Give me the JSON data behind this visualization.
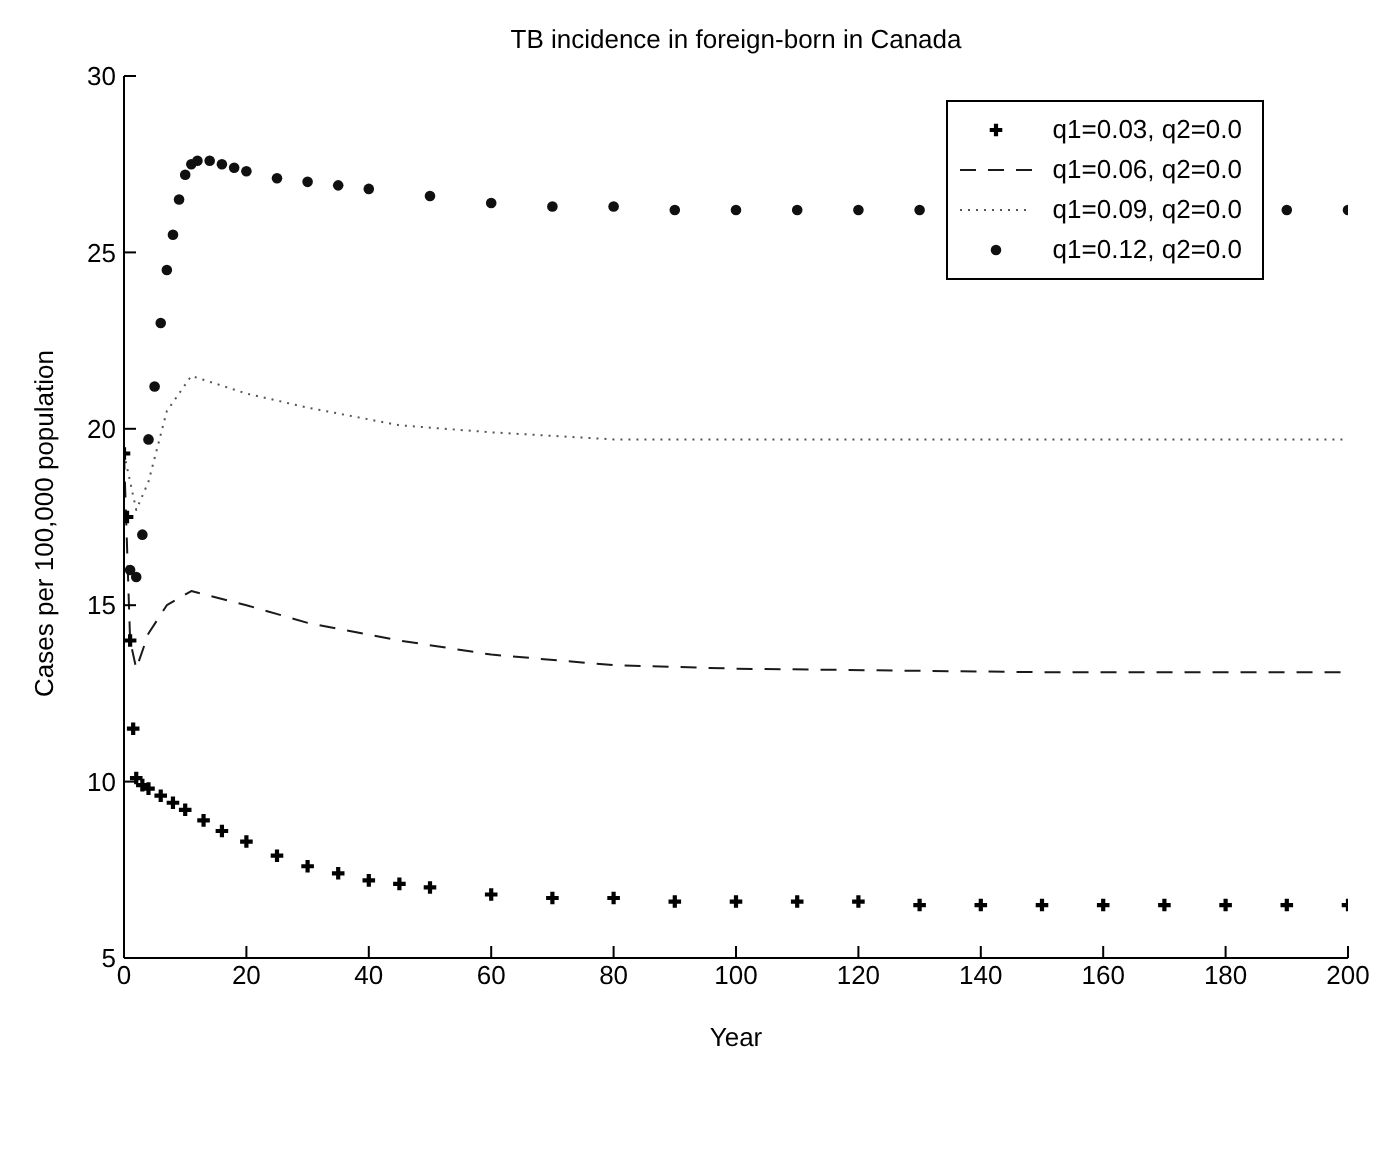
{
  "chart_data": {
    "type": "line",
    "title": "TB incidence in foreign-born in Canada",
    "xlabel": "Year",
    "ylabel": "Cases per 100,000 population",
    "xlim": [
      0,
      200
    ],
    "xticks": [
      0,
      20,
      40,
      60,
      80,
      100,
      120,
      140,
      160,
      180,
      200
    ],
    "ylim": [
      5,
      30
    ],
    "yticks": [
      5,
      10,
      15,
      20,
      25,
      30
    ],
    "grid": false,
    "legend": "top right",
    "series": [
      {
        "name": "q1=0.03, q2=0.0",
        "type": "scatter",
        "marker": "cross",
        "color": "#000000",
        "x": [
          0,
          0.5,
          1,
          1.5,
          2,
          3,
          4,
          6,
          8,
          10,
          13,
          16,
          20,
          25,
          30,
          35,
          40,
          45,
          50,
          60,
          70,
          80,
          90,
          100,
          110,
          120,
          130,
          140,
          150,
          160,
          170,
          180,
          190,
          200
        ],
        "values": [
          19.3,
          17.5,
          14.0,
          11.5,
          10.1,
          9.9,
          9.8,
          9.6,
          9.4,
          9.2,
          8.9,
          8.6,
          8.3,
          7.9,
          7.6,
          7.4,
          7.2,
          7.1,
          7.0,
          6.8,
          6.7,
          6.7,
          6.6,
          6.6,
          6.6,
          6.6,
          6.5,
          6.5,
          6.5,
          6.5,
          6.5,
          6.5,
          6.5,
          6.5
        ]
      },
      {
        "name": "q1=0.06, q2=0.0",
        "line_style": "dashed",
        "color": "#1a1a1a",
        "x": [
          0,
          1,
          2,
          4,
          7,
          11,
          20,
          30,
          45,
          60,
          80,
          100,
          150,
          200
        ],
        "values": [
          19.3,
          14.0,
          13.2,
          14.2,
          15.0,
          15.4,
          15.0,
          14.5,
          14.0,
          13.6,
          13.3,
          13.2,
          13.1,
          13.1
        ]
      },
      {
        "name": "q1=0.09, q2=0.0",
        "line_style": "dotted",
        "color": "#555555",
        "x": [
          0,
          2,
          4,
          7,
          11,
          20,
          30,
          45,
          60,
          80,
          100,
          150,
          200
        ],
        "values": [
          19.3,
          17.7,
          18.5,
          20.5,
          21.5,
          21.0,
          20.6,
          20.1,
          19.9,
          19.7,
          19.7,
          19.7,
          19.7
        ]
      },
      {
        "name": "q1=0.12, q2=0.0",
        "type": "scatter",
        "marker": "circle",
        "color": "#101010",
        "x": [
          1,
          2,
          3,
          4,
          5,
          6,
          7,
          8,
          9,
          10,
          11,
          12,
          14,
          16,
          18,
          20,
          25,
          30,
          35,
          40,
          50,
          60,
          70,
          80,
          90,
          100,
          110,
          120,
          130,
          190,
          200
        ],
        "values": [
          16.0,
          15.8,
          17.0,
          19.7,
          21.2,
          23.0,
          24.5,
          25.5,
          26.5,
          27.2,
          27.5,
          27.6,
          27.6,
          27.5,
          27.4,
          27.3,
          27.1,
          27.0,
          26.9,
          26.8,
          26.6,
          26.4,
          26.3,
          26.3,
          26.2,
          26.2,
          26.2,
          26.2,
          26.2,
          26.2,
          26.2
        ]
      }
    ]
  }
}
